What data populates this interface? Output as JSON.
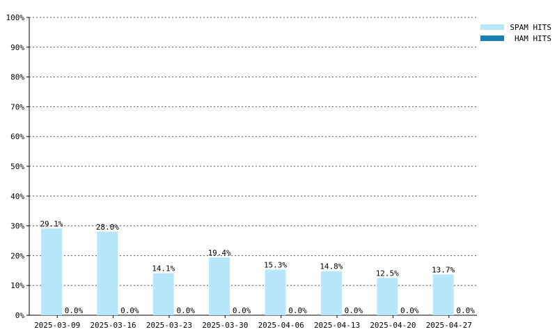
{
  "chart_data": {
    "type": "bar",
    "categories": [
      "2025-03-09",
      "2025-03-16",
      "2025-03-23",
      "2025-03-30",
      "2025-04-06",
      "2025-04-13",
      "2025-04-20",
      "2025-04-27"
    ],
    "series": [
      {
        "name": "SPAM HITS",
        "values": [
          29.1,
          28.0,
          14.1,
          19.4,
          15.3,
          14.8,
          12.5,
          13.7
        ],
        "labels": [
          "29.1%",
          "28.0%",
          "14.1%",
          "19.4%",
          "15.3%",
          "14.8%",
          "12.5%",
          "13.7%"
        ],
        "color": "#b8e6fb"
      },
      {
        "name": "HAM HITS",
        "values": [
          0,
          0,
          0,
          0,
          0,
          0,
          0,
          0
        ],
        "labels": [
          "0.0%",
          "0.0%",
          "0.0%",
          "0.0%",
          "0.0%",
          "0.0%",
          "0.0%",
          "0.0%"
        ],
        "color": "#1a80b3"
      }
    ],
    "yticks": [
      "0%",
      "10%",
      "20%",
      "30%",
      "40%",
      "50%",
      "60%",
      "70%",
      "80%",
      "90%",
      "100%"
    ],
    "ylim": [
      0,
      100
    ],
    "grid": true,
    "legend_position": "top-right"
  }
}
